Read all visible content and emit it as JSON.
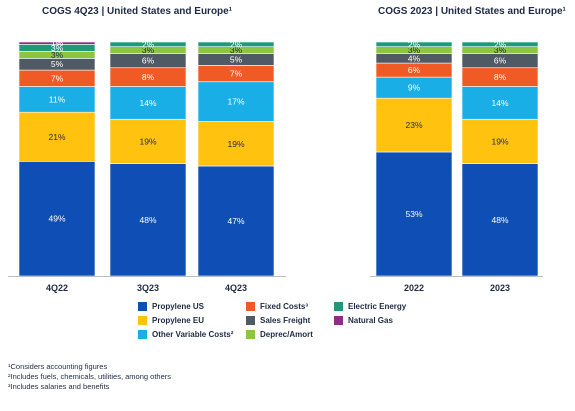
{
  "titles": {
    "left": "COGS 4Q23 | United States and Europe¹",
    "right": "COGS 2023 | United States and Europe¹"
  },
  "colors": {
    "Propylene US": "#0f4fb5",
    "Propylene EU": "#ffc20e",
    "Other Variable Costs²": "#1aaee6",
    "Fixed Costs³": "#f05a24",
    "Sales Freight": "#505a64",
    "Deprec/Amort": "#8cc63f",
    "Electric Energy": "#1f9a78",
    "Natural Gas": "#8e2d83"
  },
  "legend": {
    "items": [
      {
        "label": "Propylene US",
        "key": "Propylene US"
      },
      {
        "label": "Propylene EU",
        "key": "Propylene EU"
      },
      {
        "label": "Other Variable Costs²",
        "key": "Other Variable Costs²"
      },
      {
        "label": "Fixed Costs³",
        "key": "Fixed Costs³"
      },
      {
        "label": "Sales Freight",
        "key": "Sales Freight"
      },
      {
        "label": "Deprec/Amort",
        "key": "Deprec/Amort"
      },
      {
        "label": "Electric Energy",
        "key": "Electric Energy"
      },
      {
        "label": "Natural Gas",
        "key": "Natural Gas"
      }
    ]
  },
  "footnotes": [
    "¹Considers accounting figures",
    "²Includes fuels, chemicals, utilities, among others",
    "³Includes salaries and benefits"
  ],
  "chart_data": [
    {
      "type": "bar",
      "stacked": true,
      "title": "COGS 4Q23 | United States and Europe¹",
      "categories": [
        "4Q22",
        "3Q23",
        "4Q23"
      ],
      "ylim": [
        0,
        100
      ],
      "series": [
        {
          "name": "Propylene US",
          "values": [
            49,
            48,
            47
          ]
        },
        {
          "name": "Propylene EU",
          "values": [
            21,
            19,
            19
          ]
        },
        {
          "name": "Other Variable Costs²",
          "values": [
            11,
            14,
            17
          ]
        },
        {
          "name": "Fixed Costs³",
          "values": [
            7,
            8,
            7
          ]
        },
        {
          "name": "Sales Freight",
          "values": [
            5,
            6,
            5
          ]
        },
        {
          "name": "Deprec/Amort",
          "values": [
            3,
            3,
            3
          ]
        },
        {
          "name": "Electric Energy",
          "values": [
            3,
            2,
            2
          ]
        },
        {
          "name": "Natural Gas",
          "values": [
            1,
            0,
            0
          ]
        }
      ]
    },
    {
      "type": "bar",
      "stacked": true,
      "title": "COGS 2023 | United States and Europe¹",
      "categories": [
        "2022",
        "2023"
      ],
      "ylim": [
        0,
        100
      ],
      "series": [
        {
          "name": "Propylene US",
          "values": [
            53,
            48
          ]
        },
        {
          "name": "Propylene EU",
          "values": [
            23,
            19
          ]
        },
        {
          "name": "Other Variable Costs²",
          "values": [
            9,
            14
          ]
        },
        {
          "name": "Fixed Costs³",
          "values": [
            6,
            8
          ]
        },
        {
          "name": "Sales Freight",
          "values": [
            4,
            6
          ]
        },
        {
          "name": "Deprec/Amort",
          "values": [
            3,
            3
          ]
        },
        {
          "name": "Electric Energy",
          "values": [
            2,
            2
          ]
        },
        {
          "name": "Natural Gas",
          "values": [
            0,
            0
          ]
        }
      ]
    }
  ]
}
